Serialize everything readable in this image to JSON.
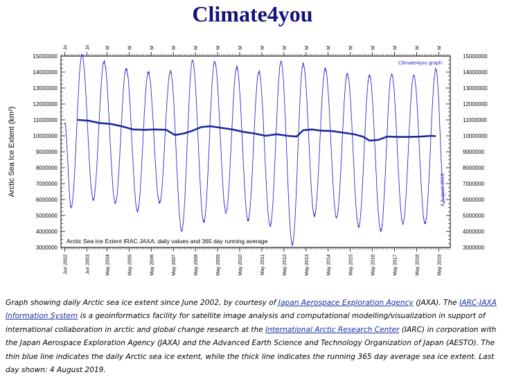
{
  "page": {
    "title": "Climate4you",
    "caption": {
      "t1": "Graph showing daily Arctic sea ice extent since June 2002, by courtesy of ",
      "link1": "Japan Aerospace Exploration Agency",
      "t2": " (JAXA). The ",
      "link2": "IARC-JAXA Information System",
      "t3": " is a geoinformatics facility for satellite image analysis and computational modelling/visualization in support of international collaboration in arctic and global change research at the ",
      "link3": "International Arctic Research Center",
      "t4": " (IARC) in corporation with the Japan Aerospace Exploration Agency (JAXA) and the Advanced Earth Science and Technology Organization of Japan (AESTO). The thin blue line indicates the daily Arctic sea ice extent, while the thick line indicates the running 365 day average sea ice extent. Last day shown: 4 August 2019."
    }
  },
  "chart_data": {
    "type": "line",
    "ylabel": "Arctic Sea Ice Extent (km²)",
    "ylim": [
      3000000,
      15000000
    ],
    "y_ticks": [
      3000000,
      4000000,
      5000000,
      6000000,
      7000000,
      8000000,
      9000000,
      10000000,
      11000000,
      12000000,
      13000000,
      14000000,
      15000000
    ],
    "y_tick_labels": [
      "3000000",
      "4000000",
      "5000000",
      "6000000",
      "7000000",
      "8000000",
      "9000000",
      "10000000",
      "11000000",
      "12000000",
      "13000000",
      "14000000",
      "15000000"
    ],
    "xlim": [
      2002.25,
      2019.85
    ],
    "x_ticks": [
      2002.42,
      2003.42,
      2004.33,
      2005.33,
      2006.33,
      2007.33,
      2008.33,
      2009.33,
      2010.33,
      2011.33,
      2012.33,
      2013.33,
      2014.33,
      2015.33,
      2016.33,
      2017.33,
      2018.33,
      2019.33
    ],
    "x_tick_labels": [
      "Jun 2002",
      "Jun 2003",
      "May 2004",
      "May 2005",
      "May 2006",
      "May 2007",
      "May 2008",
      "May 2009",
      "May 2010",
      "May 2011",
      "May 2012",
      "May 2013",
      "May 2014",
      "May 2015",
      "May 2016",
      "May 2017",
      "May 2018",
      "May 2019"
    ],
    "top_tick_labels": [
      "Jn",
      "Jn",
      "M",
      "M",
      "M",
      "M",
      "M",
      "M",
      "M",
      "M",
      "M",
      "M",
      "M",
      "M",
      "M",
      "M",
      "M",
      "M"
    ],
    "annotations": {
      "source_tag": "Climate4you graph",
      "inner_title": "Arctic Sea Ice Extent IRAC JAXA; daily values and 365 day running average",
      "last_day": "4 August 2019"
    },
    "grid": false,
    "series": [
      {
        "label": "daily",
        "color": "#2a2ad0",
        "annual_extremes": [
          {
            "year": 2002,
            "max": 10500000,
            "min": 5500000
          },
          {
            "year": 2003,
            "max": 15050000,
            "min": 6000000
          },
          {
            "year": 2004,
            "max": 14650000,
            "min": 5800000
          },
          {
            "year": 2005,
            "max": 14200000,
            "min": 5300000
          },
          {
            "year": 2006,
            "max": 14000000,
            "min": 5800000
          },
          {
            "year": 2007,
            "max": 14050000,
            "min": 4050000
          },
          {
            "year": 2008,
            "max": 14700000,
            "min": 4600000
          },
          {
            "year": 2009,
            "max": 14650000,
            "min": 5200000
          },
          {
            "year": 2010,
            "max": 14300000,
            "min": 4700000
          },
          {
            "year": 2011,
            "max": 14050000,
            "min": 4350000
          },
          {
            "year": 2012,
            "max": 14650000,
            "min": 3200000
          },
          {
            "year": 2013,
            "max": 14500000,
            "min": 5000000
          },
          {
            "year": 2014,
            "max": 14200000,
            "min": 4900000
          },
          {
            "year": 2015,
            "max": 13900000,
            "min": 4300000
          },
          {
            "year": 2016,
            "max": 13800000,
            "min": 4050000
          },
          {
            "year": 2017,
            "max": 13900000,
            "min": 4500000
          },
          {
            "year": 2018,
            "max": 13800000,
            "min": 4500000
          },
          {
            "year": 2019,
            "max": 14200000,
            "min": 5750000
          }
        ],
        "last_value": {
          "x": 2019.59,
          "y": 5750000
        }
      },
      {
        "label": "365 day running average",
        "color": "#1e2a9a",
        "x": [
          2003.0,
          2003.5,
          2004.0,
          2004.5,
          2005.0,
          2005.5,
          2006.0,
          2006.5,
          2007.0,
          2007.4,
          2007.8,
          2008.2,
          2008.6,
          2009.0,
          2009.5,
          2010.0,
          2010.5,
          2011.0,
          2011.5,
          2012.0,
          2012.5,
          2012.9,
          2013.2,
          2013.6,
          2014.0,
          2014.5,
          2015.0,
          2015.5,
          2015.9,
          2016.2,
          2016.6,
          2017.0,
          2017.5,
          2018.0,
          2018.5,
          2019.0,
          2019.2
        ],
        "y": [
          11000000,
          10950000,
          10800000,
          10750000,
          10600000,
          10400000,
          10380000,
          10400000,
          10380000,
          10050000,
          10150000,
          10320000,
          10550000,
          10600000,
          10500000,
          10400000,
          10250000,
          10150000,
          10000000,
          10100000,
          10000000,
          9950000,
          10350000,
          10400000,
          10320000,
          10300000,
          10200000,
          10100000,
          9950000,
          9700000,
          9750000,
          9950000,
          9930000,
          9930000,
          9950000,
          10000000,
          9980000
        ]
      }
    ]
  }
}
